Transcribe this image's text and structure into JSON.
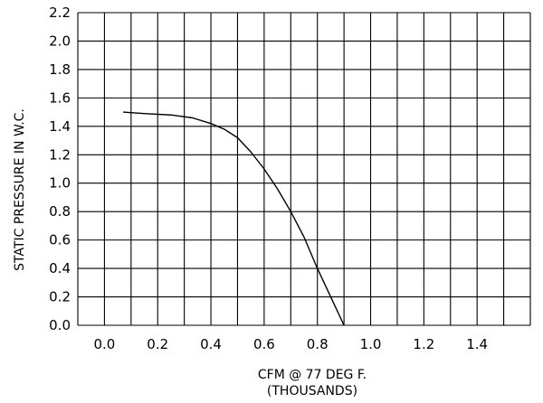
{
  "chart_data": {
    "type": "line",
    "title": "",
    "xlabel_line1": "CFM @ 77 DEG F.",
    "xlabel_line2": "(THOUSANDS)",
    "ylabel": "STATIC PRESSURE IN W.C.",
    "xlim": [
      -0.1,
      1.6
    ],
    "ylim": [
      0,
      2.2
    ],
    "x_grid_step": 0.1,
    "y_grid_step": 0.2,
    "grid": true,
    "x_ticks": [
      {
        "value": 0.0,
        "label": "0.0"
      },
      {
        "value": 0.2,
        "label": "0.2"
      },
      {
        "value": 0.4,
        "label": "0.4"
      },
      {
        "value": 0.6,
        "label": "0.6"
      },
      {
        "value": 0.8,
        "label": "0.8"
      },
      {
        "value": 1.0,
        "label": "1.0"
      },
      {
        "value": 1.2,
        "label": "1.2"
      },
      {
        "value": 1.4,
        "label": "1.4"
      }
    ],
    "y_ticks": [
      {
        "value": 0.0,
        "label": "0.0"
      },
      {
        "value": 0.2,
        "label": "0.2"
      },
      {
        "value": 0.4,
        "label": "0.4"
      },
      {
        "value": 0.6,
        "label": "0.6"
      },
      {
        "value": 0.8,
        "label": "0.8"
      },
      {
        "value": 1.0,
        "label": "1.0"
      },
      {
        "value": 1.2,
        "label": "1.2"
      },
      {
        "value": 1.4,
        "label": "1.4"
      },
      {
        "value": 1.6,
        "label": "1.6"
      },
      {
        "value": 1.8,
        "label": "1.8"
      },
      {
        "value": 2.0,
        "label": "2.0"
      },
      {
        "value": 2.2,
        "label": "2.2"
      }
    ],
    "series": [
      {
        "x": [
          0.07,
          0.15,
          0.25,
          0.33,
          0.4,
          0.45,
          0.5,
          0.55,
          0.6,
          0.65,
          0.7,
          0.75,
          0.8,
          0.85,
          0.9
        ],
        "y": [
          1.5,
          1.49,
          1.48,
          1.46,
          1.42,
          1.38,
          1.32,
          1.22,
          1.1,
          0.96,
          0.8,
          0.62,
          0.4,
          0.2,
          0.0
        ]
      }
    ],
    "colors": {
      "line": "#000000",
      "grid": "#000000",
      "background": "#ffffff"
    }
  }
}
